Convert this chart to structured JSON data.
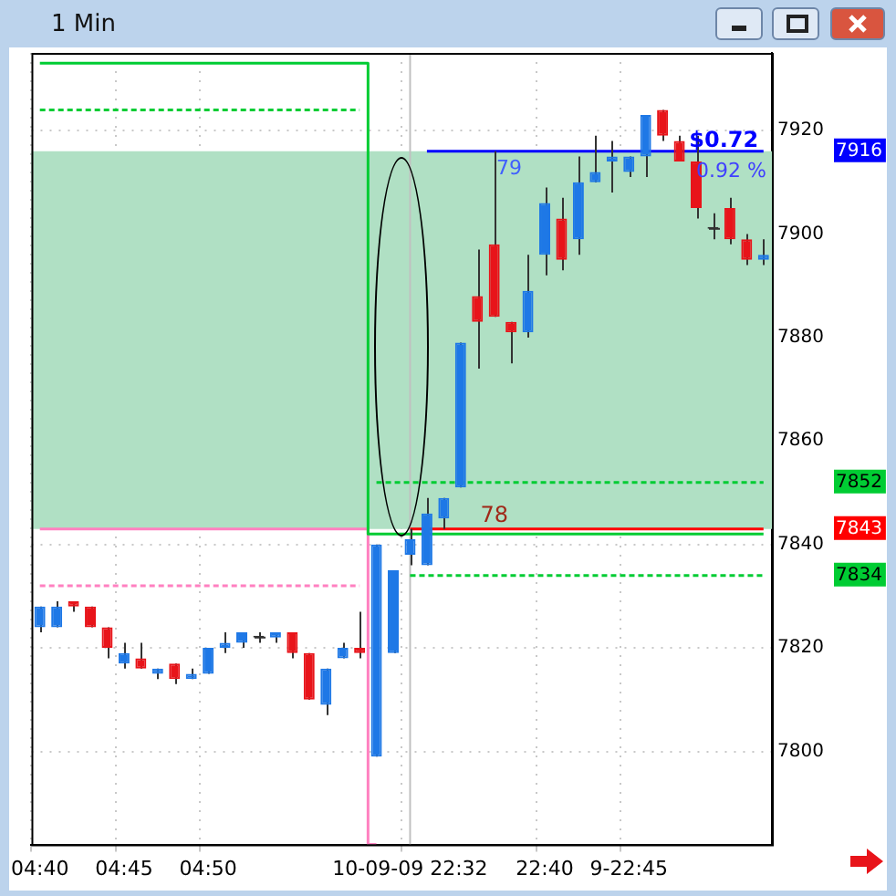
{
  "chart_data": {
    "type": "candlestick",
    "title": "1 Min",
    "categories": [
      "04:40",
      null,
      null,
      null,
      null,
      "04:45",
      null,
      null,
      null,
      null,
      "04:50",
      null,
      null,
      null,
      null,
      null,
      null,
      null,
      null,
      null,
      null,
      null,
      "10-09-09 22:32",
      null,
      null,
      null,
      null,
      null,
      null,
      null,
      "22:40",
      null,
      null,
      null,
      null,
      "9-22:45",
      null,
      null,
      null,
      null,
      null,
      null,
      null,
      null
    ],
    "ohlc": [
      [
        7824,
        7828,
        7823,
        7828
      ],
      [
        7824,
        7829,
        7824,
        7828
      ],
      [
        7829,
        7829,
        7827,
        7828
      ],
      [
        7828,
        7828,
        7824,
        7824
      ],
      [
        7824,
        7824,
        7818,
        7820
      ],
      [
        7817,
        7821,
        7816,
        7819
      ],
      [
        7818,
        7821,
        7816,
        7816
      ],
      [
        7815,
        7816,
        7814,
        7816
      ],
      [
        7817,
        7817,
        7813,
        7814
      ],
      [
        7814,
        7816,
        7814,
        7815
      ],
      [
        7815,
        7820,
        7815,
        7820
      ],
      [
        7820,
        7823,
        7819,
        7821
      ],
      [
        7821,
        7823,
        7820,
        7823
      ],
      [
        7822,
        7823,
        7821,
        7822
      ],
      [
        7822,
        7823,
        7821,
        7823
      ],
      [
        7823,
        7823,
        7818,
        7819
      ],
      [
        7819,
        7819,
        7810,
        7810
      ],
      [
        7809,
        7816,
        7807,
        7816
      ],
      [
        7818,
        7821,
        7818,
        7820
      ],
      [
        7820,
        7827,
        7818,
        7819
      ],
      [
        7799,
        7840,
        7799,
        7840
      ],
      [
        7819,
        7835,
        7819,
        7835
      ],
      [
        7838,
        7843,
        7836,
        7841
      ],
      [
        7836,
        7849,
        7836,
        7846
      ],
      [
        7845,
        7849,
        7843,
        7849
      ],
      [
        7851,
        7879,
        7851,
        7879
      ],
      [
        7888,
        7897,
        7874,
        7883
      ],
      [
        7898,
        7916,
        7884,
        7884
      ],
      [
        7883,
        7883,
        7875,
        7881
      ],
      [
        7881,
        7896,
        7880,
        7889
      ],
      [
        7896,
        7909,
        7892,
        7906
      ],
      [
        7903,
        7907,
        7893,
        7895
      ],
      [
        7899,
        7915,
        7896,
        7910
      ],
      [
        7910,
        7919,
        7910,
        7912
      ],
      [
        7914,
        7918,
        7908,
        7915
      ],
      [
        7912,
        7915,
        7911,
        7915
      ],
      [
        7915,
        7923,
        7911,
        7923
      ],
      [
        7924,
        7924,
        7918,
        7919
      ],
      [
        7918,
        7919,
        7914,
        7914
      ],
      [
        7914,
        7919,
        7903,
        7905
      ],
      [
        7901,
        7904,
        7899,
        7901
      ],
      [
        7905,
        7907,
        7898,
        7899
      ],
      [
        7899,
        7900,
        7894,
        7895
      ],
      [
        7895,
        7899,
        7894,
        7896
      ]
    ],
    "colors": [
      "#1e78e6",
      "#1e78e6",
      "#e8141a",
      "#e8141a",
      "#e8141a",
      "#1e78e6",
      "#e8141a",
      "#1e78e6",
      "#e8141a",
      "#1e78e6",
      "#1e78e6",
      "#1e78e6",
      "#1e78e6",
      "#333333",
      "#1e78e6",
      "#e8141a",
      "#e8141a",
      "#1e78e6",
      "#1e78e6",
      "#e8141a",
      "#1e78e6",
      "#1e78e6",
      "#1e78e6",
      "#1e78e6",
      "#1e78e6",
      "#1e78e6",
      "#e8141a",
      "#e8141a",
      "#e8141a",
      "#1e78e6",
      "#1e78e6",
      "#e8141a",
      "#1e78e6",
      "#1e78e6",
      "#1e78e6",
      "#1e78e6",
      "#1e78e6",
      "#e8141a",
      "#e8141a",
      "#e8141a",
      "#333333",
      "#e8141a",
      "#e8141a",
      "#1e78e6"
    ],
    "series": [
      {
        "type": "step",
        "color": "#00cc33",
        "values": [
          7933,
          7933,
          7933,
          7933,
          7933,
          7933,
          7933,
          7933,
          7933,
          7933,
          7933,
          7933,
          7933,
          7933,
          7933,
          7933,
          7933,
          7933,
          7933,
          7933,
          7842,
          7842,
          7842,
          7842,
          7842,
          7842,
          7842,
          7842,
          7842,
          7842,
          7842,
          7842,
          7842,
          7842,
          7842,
          7842,
          7842,
          7842,
          7842,
          7842,
          7842,
          7842,
          7842,
          7842
        ]
      },
      {
        "type": "line",
        "line_style": "dashed",
        "color": "#00cc33",
        "values": [
          7924,
          7924,
          7924,
          7924,
          7924,
          7924,
          7924,
          7924,
          7924,
          7924,
          7924,
          7924,
          7924,
          7924,
          7924,
          7924,
          7924,
          7924,
          7924,
          7924,
          null,
          null,
          null,
          null,
          null,
          null,
          null,
          null,
          null,
          null,
          null,
          null,
          null,
          null,
          null,
          null,
          null,
          null,
          null,
          null,
          null,
          null,
          null,
          null
        ]
      },
      {
        "type": "step",
        "color": "#ff80c0",
        "values": [
          7843,
          7843,
          7843,
          7843,
          7843,
          7843,
          7843,
          7843,
          7843,
          7843,
          7843,
          7843,
          7843,
          7843,
          7843,
          7843,
          7843,
          7843,
          7843,
          7843,
          7782,
          null,
          null,
          null,
          null,
          null,
          null,
          null,
          null,
          null,
          null,
          null,
          null,
          null,
          null,
          null,
          null,
          null,
          null,
          null,
          null,
          null,
          null,
          null
        ]
      },
      {
        "type": "line",
        "line_style": "dashed",
        "color": "#ff80c0",
        "values": [
          7832,
          7832,
          7832,
          7832,
          7832,
          7832,
          7832,
          7832,
          7832,
          7832,
          7832,
          7832,
          7832,
          7832,
          7832,
          7832,
          7832,
          7832,
          7832,
          7832,
          null,
          null,
          null,
          null,
          null,
          null,
          null,
          null,
          null,
          null,
          null,
          null,
          null,
          null,
          null,
          null,
          null,
          null,
          null,
          null,
          null,
          null,
          null,
          null
        ]
      },
      {
        "type": "line",
        "line_style": "dashed",
        "color": "#00cc33",
        "values": [
          null,
          null,
          null,
          null,
          null,
          null,
          null,
          null,
          null,
          null,
          null,
          null,
          null,
          null,
          null,
          null,
          null,
          null,
          null,
          null,
          7852,
          7852,
          7852,
          7852,
          7852,
          7852,
          7852,
          7852,
          7852,
          7852,
          7852,
          7852,
          7852,
          7852,
          7852,
          7852,
          7852,
          7852,
          7852,
          7852,
          7852,
          7852,
          7852,
          7852
        ]
      },
      {
        "type": "line",
        "line_style": "dashed",
        "color": "#00cc33",
        "values": [
          null,
          null,
          null,
          null,
          null,
          null,
          null,
          null,
          null,
          null,
          null,
          null,
          null,
          null,
          null,
          null,
          null,
          null,
          null,
          null,
          null,
          null,
          7834,
          7834,
          7834,
          7834,
          7834,
          7834,
          7834,
          7834,
          7834,
          7834,
          7834,
          7834,
          7834,
          7834,
          7834,
          7834,
          7834,
          7834,
          7834,
          7834,
          7834,
          7834
        ]
      },
      {
        "type": "line",
        "color": "#ff0000",
        "values": [
          null,
          null,
          null,
          null,
          null,
          null,
          null,
          null,
          null,
          null,
          null,
          null,
          null,
          null,
          null,
          null,
          null,
          null,
          null,
          null,
          null,
          null,
          7843,
          7843,
          7843,
          7843,
          7843,
          7843,
          7843,
          7843,
          7843,
          7843,
          7843,
          7843,
          7843,
          7843,
          7843,
          7843,
          7843,
          7843,
          7843,
          7843,
          7843,
          7843
        ]
      },
      {
        "type": "line",
        "color": "#0000ff",
        "values": [
          null,
          null,
          null,
          null,
          null,
          null,
          null,
          null,
          null,
          null,
          null,
          null,
          null,
          null,
          null,
          null,
          null,
          null,
          null,
          null,
          null,
          null,
          null,
          7916,
          7916,
          7916,
          7916,
          7916,
          7916,
          7916,
          7916,
          7916,
          7916,
          7916,
          7916,
          7916,
          7916,
          7916,
          7916,
          7916,
          7916,
          7916,
          7916,
          7916
        ]
      }
    ],
    "bands": [
      {
        "axis": "y",
        "from": 7843,
        "to": 7916,
        "color": "#b0e0c4"
      }
    ],
    "ref_lines": [
      {
        "axis": "x",
        "value": "10-09-09 22:32",
        "color": "#c0c0c0"
      }
    ],
    "annotations": [
      "$0.72",
      "0.92 %",
      "79",
      "78"
    ],
    "y2lim": [
      7782,
      7935
    ],
    "y2ticks": [
      7916,
      7852,
      7843,
      7834
    ],
    "ylim": [
      7782,
      7935
    ],
    "yticks": [
      7800,
      7820,
      7840,
      7860,
      7880,
      7900,
      7920
    ],
    "grid": true,
    "legend": false
  }
}
